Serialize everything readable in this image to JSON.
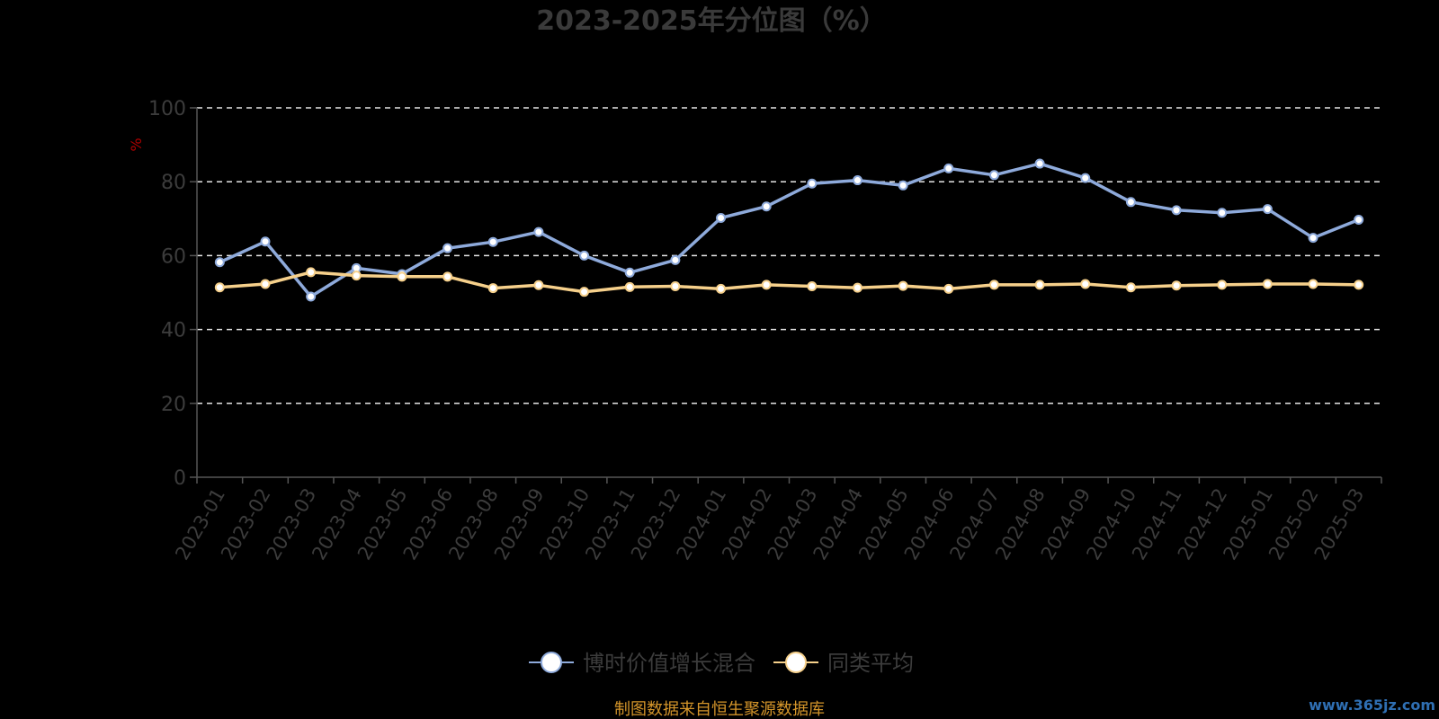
{
  "chart_data": {
    "type": "line",
    "title": "2023-2025年分位图（%）",
    "ylabel": "%",
    "xlabel": "",
    "ylim": [
      0,
      100
    ],
    "yticks": [
      0,
      20,
      40,
      60,
      80,
      100
    ],
    "grid": true,
    "legend_position": "bottom",
    "categories": [
      "2023-01",
      "2023-02",
      "2023-03",
      "2023-04",
      "2023-05",
      "2023-06",
      "2023-08",
      "2023-09",
      "2023-10",
      "2023-11",
      "2023-12",
      "2024-01",
      "2024-02",
      "2024-03",
      "2024-04",
      "2024-05",
      "2024-06",
      "2024-07",
      "2024-08",
      "2024-09",
      "2024-10",
      "2024-11",
      "2024-12",
      "2025-01",
      "2025-02",
      "2025-03"
    ],
    "series": [
      {
        "name": "博时价值增长混合",
        "color": "#8eaadb",
        "values": [
          58.2,
          63.8,
          48.9,
          56.6,
          55.0,
          62.0,
          63.7,
          66.4,
          60.0,
          55.4,
          58.8,
          70.2,
          73.3,
          79.5,
          80.4,
          79.0,
          83.6,
          81.8,
          84.9,
          81.0,
          74.5,
          72.3,
          71.6,
          72.6,
          64.8,
          69.7
        ]
      },
      {
        "name": "同类平均",
        "color": "#f6d08b",
        "values": [
          51.4,
          52.3,
          55.5,
          54.6,
          54.3,
          54.3,
          51.2,
          52.0,
          50.2,
          51.5,
          51.7,
          51.0,
          52.1,
          51.7,
          51.3,
          51.8,
          51.0,
          52.1,
          52.1,
          52.3,
          51.4,
          51.9,
          52.1,
          52.3,
          52.3,
          52.1
        ]
      }
    ]
  },
  "footer": {
    "source_note": "制图数据来自恒生聚源数据库",
    "watermark": "www.365jz.com"
  }
}
